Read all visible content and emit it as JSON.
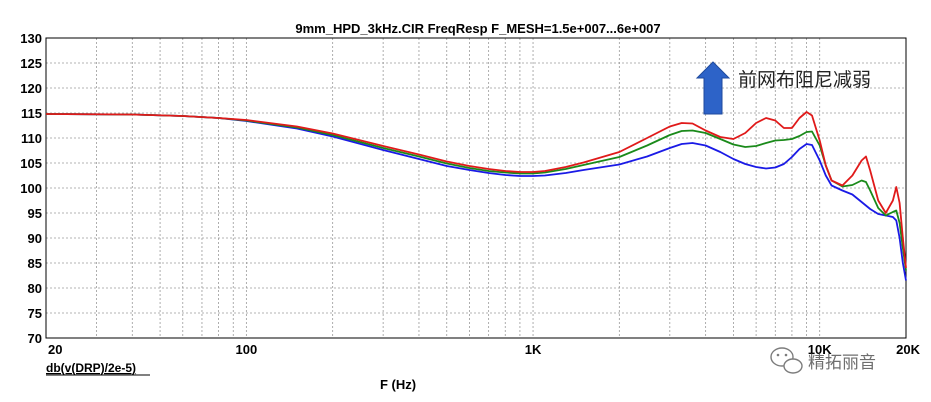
{
  "chart_data": {
    "type": "line",
    "title": "9mm_HPD_3kHz.CIR FreqResp F_MESH=1.5e+007...6e+007",
    "xlabel": "F (Hz)",
    "ylabel": "db(v(DRP)/2e-5)",
    "x_scale": "log",
    "xlim": [
      20,
      20000
    ],
    "ylim": [
      70,
      130
    ],
    "grid": true,
    "x_ticks": [
      {
        "value": 20,
        "label": "20"
      },
      {
        "value": 100,
        "label": "100"
      },
      {
        "value": 1000,
        "label": "1K"
      },
      {
        "value": 10000,
        "label": "10K"
      },
      {
        "value": 20000,
        "label": "20K"
      }
    ],
    "y_ticks": [
      70,
      75,
      80,
      85,
      90,
      95,
      100,
      105,
      110,
      115,
      120,
      125,
      130
    ],
    "series": [
      {
        "color": "#1a1ae6",
        "points": [
          [
            20,
            114.8
          ],
          [
            40,
            114.7
          ],
          [
            60,
            114.4
          ],
          [
            80,
            114.0
          ],
          [
            100,
            113.4
          ],
          [
            150,
            111.9
          ],
          [
            200,
            110.3
          ],
          [
            300,
            107.6
          ],
          [
            400,
            105.8
          ],
          [
            500,
            104.4
          ],
          [
            600,
            103.6
          ],
          [
            700,
            103.0
          ],
          [
            800,
            102.6
          ],
          [
            900,
            102.4
          ],
          [
            1000,
            102.4
          ],
          [
            1100,
            102.5
          ],
          [
            1300,
            103.0
          ],
          [
            1500,
            103.6
          ],
          [
            2000,
            104.7
          ],
          [
            2500,
            106.3
          ],
          [
            3000,
            108.0
          ],
          [
            3300,
            108.8
          ],
          [
            3600,
            109.0
          ],
          [
            4000,
            108.5
          ],
          [
            4500,
            107.2
          ],
          [
            5000,
            105.8
          ],
          [
            5500,
            104.8
          ],
          [
            6000,
            104.2
          ],
          [
            6500,
            103.9
          ],
          [
            7000,
            104.1
          ],
          [
            7500,
            104.8
          ],
          [
            8000,
            106.2
          ],
          [
            8500,
            107.8
          ],
          [
            9000,
            108.8
          ],
          [
            9400,
            108.6
          ],
          [
            10000,
            105.5
          ],
          [
            10500,
            102.5
          ],
          [
            11000,
            100.5
          ],
          [
            12000,
            99.5
          ],
          [
            13000,
            98.7
          ],
          [
            14000,
            97.2
          ],
          [
            15000,
            95.8
          ],
          [
            16000,
            94.8
          ],
          [
            17000,
            94.5
          ],
          [
            18000,
            94.2
          ],
          [
            18500,
            93.5
          ],
          [
            19000,
            90.0
          ],
          [
            19500,
            85.0
          ],
          [
            20000,
            81.5
          ]
        ]
      },
      {
        "color": "#1a8a1a",
        "points": [
          [
            20,
            114.8
          ],
          [
            40,
            114.7
          ],
          [
            60,
            114.4
          ],
          [
            80,
            114.0
          ],
          [
            100,
            113.5
          ],
          [
            150,
            112.1
          ],
          [
            200,
            110.6
          ],
          [
            300,
            108.0
          ],
          [
            400,
            106.3
          ],
          [
            500,
            104.9
          ],
          [
            600,
            104.0
          ],
          [
            700,
            103.4
          ],
          [
            800,
            103.1
          ],
          [
            900,
            102.9
          ],
          [
            1000,
            102.9
          ],
          [
            1100,
            103.1
          ],
          [
            1300,
            103.8
          ],
          [
            1500,
            104.6
          ],
          [
            2000,
            106.2
          ],
          [
            2500,
            108.5
          ],
          [
            3000,
            110.6
          ],
          [
            3300,
            111.4
          ],
          [
            3600,
            111.5
          ],
          [
            4000,
            111.0
          ],
          [
            4500,
            109.8
          ],
          [
            5000,
            108.7
          ],
          [
            5500,
            108.2
          ],
          [
            6000,
            108.4
          ],
          [
            6500,
            109.0
          ],
          [
            7000,
            109.5
          ],
          [
            7500,
            109.6
          ],
          [
            8000,
            109.8
          ],
          [
            8500,
            110.4
          ],
          [
            9000,
            111.2
          ],
          [
            9400,
            111.3
          ],
          [
            10000,
            108.5
          ],
          [
            10500,
            104.5
          ],
          [
            11000,
            101.5
          ],
          [
            12000,
            100.3
          ],
          [
            13000,
            100.6
          ],
          [
            14000,
            101.5
          ],
          [
            14500,
            101.2
          ],
          [
            15000,
            99.5
          ],
          [
            16000,
            96.0
          ],
          [
            17000,
            94.5
          ],
          [
            18000,
            95.2
          ],
          [
            18500,
            95.5
          ],
          [
            19000,
            93.0
          ],
          [
            19500,
            88.0
          ],
          [
            20000,
            83.5
          ]
        ]
      },
      {
        "color": "#e01a1a",
        "points": [
          [
            20,
            114.8
          ],
          [
            40,
            114.7
          ],
          [
            60,
            114.4
          ],
          [
            80,
            114.0
          ],
          [
            100,
            113.6
          ],
          [
            150,
            112.3
          ],
          [
            200,
            110.9
          ],
          [
            300,
            108.4
          ],
          [
            400,
            106.7
          ],
          [
            500,
            105.3
          ],
          [
            600,
            104.4
          ],
          [
            700,
            103.8
          ],
          [
            800,
            103.4
          ],
          [
            900,
            103.2
          ],
          [
            1000,
            103.2
          ],
          [
            1100,
            103.4
          ],
          [
            1300,
            104.2
          ],
          [
            1500,
            105.1
          ],
          [
            2000,
            107.2
          ],
          [
            2500,
            110.0
          ],
          [
            3000,
            112.3
          ],
          [
            3300,
            113.0
          ],
          [
            3600,
            112.9
          ],
          [
            4000,
            111.5
          ],
          [
            4500,
            110.2
          ],
          [
            5000,
            109.8
          ],
          [
            5500,
            111.0
          ],
          [
            6000,
            113.0
          ],
          [
            6500,
            114.0
          ],
          [
            7000,
            113.5
          ],
          [
            7500,
            112.0
          ],
          [
            8000,
            112.0
          ],
          [
            8500,
            114.0
          ],
          [
            9000,
            115.2
          ],
          [
            9400,
            114.5
          ],
          [
            10000,
            109.5
          ],
          [
            10500,
            104.5
          ],
          [
            11000,
            101.5
          ],
          [
            12000,
            100.5
          ],
          [
            13000,
            102.5
          ],
          [
            14000,
            105.5
          ],
          [
            14500,
            106.3
          ],
          [
            15000,
            103.5
          ],
          [
            16000,
            97.5
          ],
          [
            17000,
            95.0
          ],
          [
            18000,
            97.5
          ],
          [
            18500,
            100.2
          ],
          [
            19000,
            97.0
          ],
          [
            19500,
            90.0
          ],
          [
            20000,
            84.0
          ]
        ]
      }
    ],
    "annotations": [
      {
        "text": "前网布阻尼减弱",
        "arrow": "up"
      }
    ]
  },
  "watermark": {
    "text": "精拓丽音",
    "icon": "wechat-icon"
  }
}
